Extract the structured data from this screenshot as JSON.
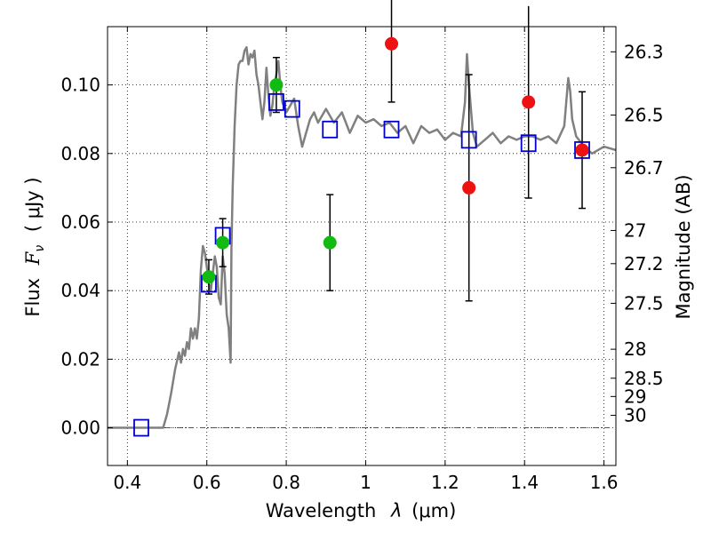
{
  "chart_data": {
    "type": "scatter",
    "xlabel_text": "Wavelength",
    "xlabel_lambda": "λ",
    "xlabel_unit": "(μm)",
    "ylabel_text": "Flux",
    "ylabel_symbol": "F",
    "ylabel_sub": "ν",
    "ylabel_unit": "( μJy )",
    "y2label": "Magnitude (AB)",
    "xlim": [
      0.35,
      1.63
    ],
    "ylim": [
      -0.011,
      0.117
    ],
    "x_ticks": [
      {
        "value": 0.4,
        "label": "0.4"
      },
      {
        "value": 0.6,
        "label": "0.6"
      },
      {
        "value": 0.8,
        "label": "0.8"
      },
      {
        "value": 1.0,
        "label": "1"
      },
      {
        "value": 1.2,
        "label": "1.2"
      },
      {
        "value": 1.4,
        "label": "1.4"
      },
      {
        "value": 1.6,
        "label": "1.6"
      }
    ],
    "y_ticks": [
      {
        "value": 0.0,
        "label": "0.00"
      },
      {
        "value": 0.02,
        "label": "0.02"
      },
      {
        "value": 0.04,
        "label": "0.04"
      },
      {
        "value": 0.06,
        "label": "0.06"
      },
      {
        "value": 0.08,
        "label": "0.08"
      },
      {
        "value": 0.1,
        "label": "0.10"
      }
    ],
    "mag_ticks": [
      {
        "value": 26.3,
        "label": "26.3"
      },
      {
        "value": 26.5,
        "label": "26.5"
      },
      {
        "value": 26.7,
        "label": "26.7"
      },
      {
        "value": 27,
        "label": "27"
      },
      {
        "value": 27.2,
        "label": "27.2"
      },
      {
        "value": 27.5,
        "label": "27.5"
      },
      {
        "value": 28,
        "label": "28"
      },
      {
        "value": 28.5,
        "label": "28.5"
      },
      {
        "value": 29,
        "label": "29"
      },
      {
        "value": 30,
        "label": "30"
      }
    ],
    "grid": true,
    "colors": {
      "model": "#808080",
      "model_points": "#0000cc",
      "green_points": "#11bb11",
      "red_points": "#ee1111",
      "errorbar": "#000000",
      "zero_line": "#555555"
    },
    "series": [
      {
        "kind": "line",
        "x": [
          0.35,
          0.49,
          0.5,
          0.51,
          0.52,
          0.53,
          0.535,
          0.54,
          0.545,
          0.55,
          0.555,
          0.56,
          0.565,
          0.57,
          0.575,
          0.58,
          0.585,
          0.59,
          0.595,
          0.6,
          0.605,
          0.61,
          0.615,
          0.62,
          0.625,
          0.63,
          0.635,
          0.64,
          0.645,
          0.65,
          0.655,
          0.66,
          0.662,
          0.665,
          0.67,
          0.675,
          0.68,
          0.685,
          0.69,
          0.695,
          0.7,
          0.705,
          0.71,
          0.715,
          0.72,
          0.725,
          0.73,
          0.735,
          0.74,
          0.745,
          0.75,
          0.755,
          0.76,
          0.765,
          0.77,
          0.775,
          0.78,
          0.785,
          0.79,
          0.8,
          0.81,
          0.82,
          0.83,
          0.84,
          0.85,
          0.86,
          0.87,
          0.88,
          0.9,
          0.92,
          0.94,
          0.96,
          0.98,
          1.0,
          1.02,
          1.04,
          1.06,
          1.08,
          1.1,
          1.12,
          1.14,
          1.16,
          1.18,
          1.2,
          1.22,
          1.24,
          1.25,
          1.255,
          1.26,
          1.27,
          1.28,
          1.3,
          1.32,
          1.34,
          1.36,
          1.38,
          1.4,
          1.42,
          1.44,
          1.46,
          1.48,
          1.5,
          1.51,
          1.515,
          1.52,
          1.53,
          1.55,
          1.57,
          1.6,
          1.63
        ],
        "y": [
          0.0,
          0.0,
          0.004,
          0.01,
          0.017,
          0.022,
          0.019,
          0.023,
          0.021,
          0.025,
          0.023,
          0.029,
          0.026,
          0.029,
          0.026,
          0.032,
          0.046,
          0.053,
          0.051,
          0.047,
          0.042,
          0.04,
          0.045,
          0.05,
          0.047,
          0.038,
          0.036,
          0.05,
          0.045,
          0.033,
          0.029,
          0.019,
          0.052,
          0.07,
          0.088,
          0.1,
          0.106,
          0.107,
          0.107,
          0.11,
          0.111,
          0.106,
          0.109,
          0.108,
          0.11,
          0.103,
          0.1,
          0.095,
          0.09,
          0.095,
          0.105,
          0.097,
          0.091,
          0.094,
          0.1,
          0.103,
          0.107,
          0.1,
          0.095,
          0.092,
          0.094,
          0.096,
          0.088,
          0.082,
          0.086,
          0.09,
          0.092,
          0.089,
          0.093,
          0.089,
          0.092,
          0.086,
          0.091,
          0.089,
          0.09,
          0.088,
          0.089,
          0.086,
          0.088,
          0.083,
          0.088,
          0.086,
          0.087,
          0.084,
          0.086,
          0.085,
          0.095,
          0.109,
          0.1,
          0.086,
          0.082,
          0.084,
          0.086,
          0.083,
          0.085,
          0.084,
          0.085,
          0.085,
          0.084,
          0.085,
          0.083,
          0.088,
          0.102,
          0.098,
          0.09,
          0.085,
          0.082,
          0.08,
          0.082,
          0.081
        ]
      },
      {
        "kind": "model_points",
        "x": [
          0.435,
          0.605,
          0.64,
          0.775,
          0.815,
          0.91,
          1.065,
          1.26,
          1.41,
          1.545
        ],
        "y": [
          0.0,
          0.042,
          0.056,
          0.095,
          0.093,
          0.087,
          0.087,
          0.084,
          0.083,
          0.081
        ]
      },
      {
        "kind": "detections",
        "x": [
          0.605,
          0.64,
          0.775,
          0.91
        ],
        "y": [
          0.044,
          0.054,
          0.1,
          0.054
        ],
        "yerr": [
          0.005,
          0.007,
          0.008,
          0.014
        ]
      },
      {
        "kind": "nir_points",
        "x": [
          1.065,
          1.26,
          1.41,
          1.545
        ],
        "y": [
          0.112,
          0.07,
          0.095,
          0.081
        ],
        "yerr": [
          0.017,
          0.033,
          0.028,
          0.017
        ]
      }
    ]
  }
}
